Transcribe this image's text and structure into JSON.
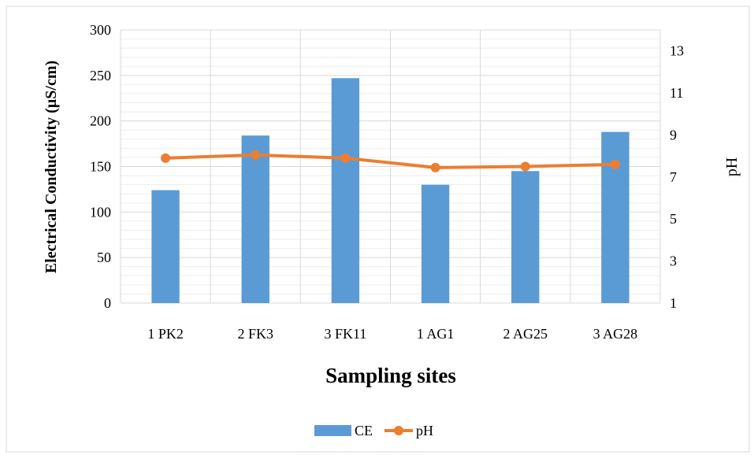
{
  "chart_data": {
    "type": "bar",
    "categories": [
      "1 PK2",
      "2 FK3",
      "3 FK11",
      "1 AG1",
      "2 AG25",
      "3 AG28"
    ],
    "series": [
      {
        "name": "CE",
        "type": "bar",
        "axis": "left",
        "color": "#5B9BD5",
        "values": [
          124,
          184,
          247,
          130,
          145,
          188
        ]
      },
      {
        "name": "pH",
        "type": "line",
        "axis": "right",
        "color": "#ED7D31",
        "values": [
          7.9,
          8.05,
          7.9,
          7.45,
          7.5,
          7.6
        ]
      }
    ],
    "xlabel": "Sampling sites",
    "ylabel": "Electrical Conductivity (µS/cm)",
    "ylabel_right": "pH",
    "ylim": [
      0,
      300
    ],
    "yticks": [
      "0",
      "50",
      "100",
      "150",
      "200",
      "250",
      "300"
    ],
    "ylim_right": [
      1,
      14
    ],
    "yticks_right": [
      "1",
      "3",
      "5",
      "7",
      "9",
      "11",
      "13"
    ],
    "grid": true,
    "legend_position": "bottom"
  }
}
